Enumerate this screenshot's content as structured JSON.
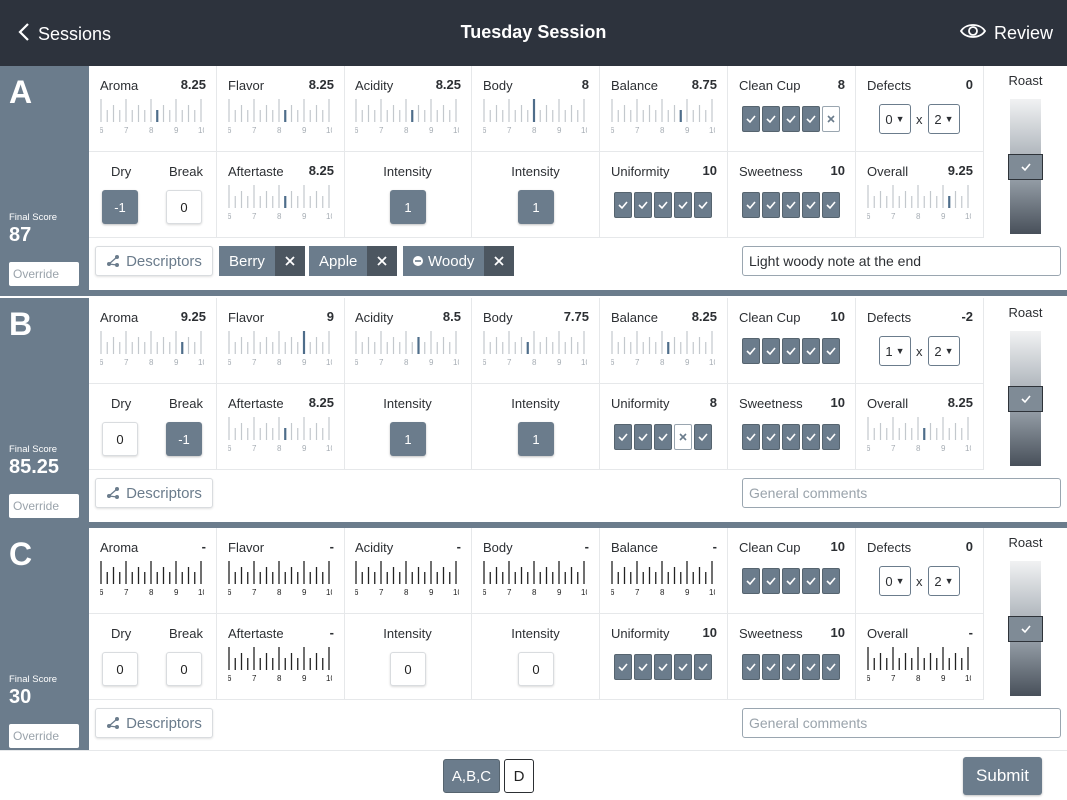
{
  "header": {
    "back_label": "Sessions",
    "title": "Tuesday Session",
    "review_label": "Review"
  },
  "labels": {
    "aroma": "Aroma",
    "flavor": "Flavor",
    "acidity": "Acidity",
    "body": "Body",
    "balance": "Balance",
    "clean_cup": "Clean Cup",
    "defects": "Defects",
    "roast": "Roast",
    "dry": "Dry",
    "break": "Break",
    "aftertaste": "Aftertaste",
    "intensity": "Intensity",
    "uniformity": "Uniformity",
    "sweetness": "Sweetness",
    "overall": "Overall",
    "final_score": "Final Score",
    "override": "Override",
    "descriptors": "Descriptors",
    "times": "x"
  },
  "scale_ticks": [
    "6",
    "7",
    "8",
    "9",
    "10"
  ],
  "samples": [
    {
      "letter": "A",
      "final_score": "87",
      "filled": false,
      "aroma": "8.25",
      "flavor": "8.25",
      "acidity": "8.25",
      "body": "8",
      "balance": "8.75",
      "clean_cup": "8",
      "clean_cup_checks": [
        true,
        true,
        true,
        true,
        false
      ],
      "defects": "0",
      "defect_cups": "0",
      "defect_intensity": "2",
      "dry": "-1",
      "break": "0",
      "aftertaste": "8.25",
      "acidity_intensity": "1",
      "body_intensity": "1",
      "uniformity": "10",
      "uniformity_checks": [
        true,
        true,
        true,
        true,
        true
      ],
      "sweetness": "10",
      "sweetness_checks": [
        true,
        true,
        true,
        true,
        true
      ],
      "overall": "9.25",
      "roast_level": 0.5,
      "tags": [
        {
          "label": "Berry",
          "icon": ""
        },
        {
          "label": "Apple",
          "icon": ""
        },
        {
          "label": "Woody",
          "icon": "minus-circle-icon"
        }
      ],
      "comment": "Light woody note at the end"
    },
    {
      "letter": "B",
      "final_score": "85.25",
      "filled": false,
      "aroma": "9.25",
      "flavor": "9",
      "acidity": "8.5",
      "body": "7.75",
      "balance": "8.25",
      "clean_cup": "10",
      "clean_cup_checks": [
        true,
        true,
        true,
        true,
        true
      ],
      "defects": "-2",
      "defect_cups": "1",
      "defect_intensity": "2",
      "dry": "0",
      "break": "-1",
      "aftertaste": "8.25",
      "acidity_intensity": "1",
      "body_intensity": "1",
      "uniformity": "8",
      "uniformity_checks": [
        true,
        true,
        true,
        false,
        true
      ],
      "sweetness": "10",
      "sweetness_checks": [
        true,
        true,
        true,
        true,
        true
      ],
      "overall": "8.25",
      "roast_level": 0.5,
      "tags": [],
      "comment": ""
    },
    {
      "letter": "C",
      "final_score": "30",
      "filled": true,
      "aroma": "-",
      "flavor": "-",
      "acidity": "-",
      "body": "-",
      "balance": "-",
      "clean_cup": "10",
      "clean_cup_checks": [
        true,
        true,
        true,
        true,
        true
      ],
      "defects": "0",
      "defect_cups": "0",
      "defect_intensity": "2",
      "dry": "0",
      "break": "0",
      "aftertaste": "-",
      "acidity_intensity": "0",
      "body_intensity": "0",
      "uniformity": "10",
      "uniformity_checks": [
        true,
        true,
        true,
        true,
        true
      ],
      "sweetness": "10",
      "sweetness_checks": [
        true,
        true,
        true,
        true,
        true
      ],
      "overall": "-",
      "roast_level": 0.5,
      "tags": [],
      "comment": ""
    }
  ],
  "comment_placeholder": "General comments",
  "footer": {
    "group_abc": "A,B,C",
    "group_d": "D",
    "submit": "Submit"
  },
  "colors": {
    "header_bg": "#2d333d",
    "accent": "#6b7c8c",
    "dark_accent": "#4c5660"
  }
}
